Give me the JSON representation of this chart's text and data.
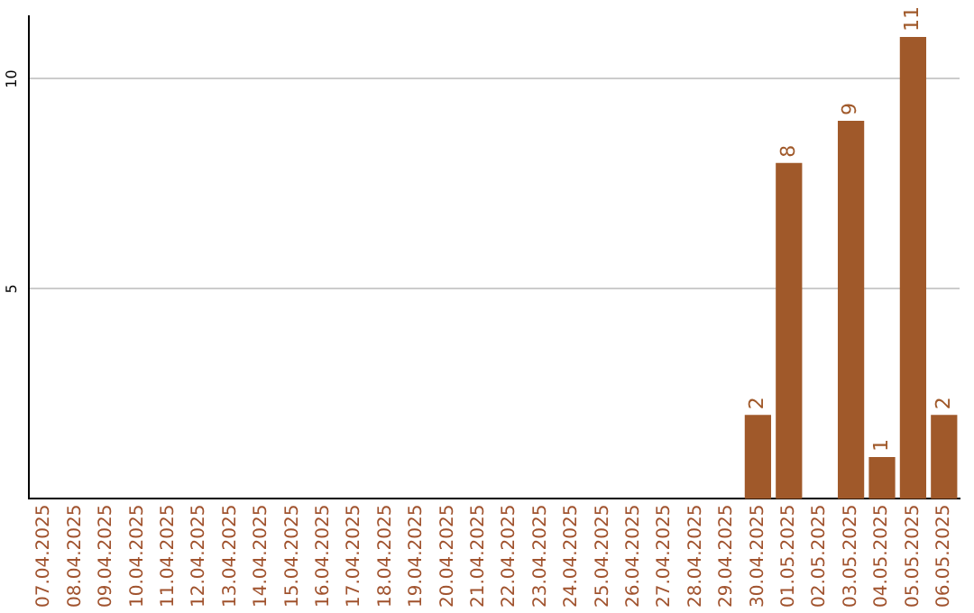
{
  "chart_data": {
    "type": "bar",
    "categories": [
      "07.04.2025",
      "08.04.2025",
      "09.04.2025",
      "10.04.2025",
      "11.04.2025",
      "12.04.2025",
      "13.04.2025",
      "14.04.2025",
      "15.04.2025",
      "16.04.2025",
      "17.04.2025",
      "18.04.2025",
      "19.04.2025",
      "20.04.2025",
      "21.04.2025",
      "22.04.2025",
      "23.04.2025",
      "24.04.2025",
      "25.04.2025",
      "26.04.2025",
      "27.04.2025",
      "28.04.2025",
      "29.04.2025",
      "30.04.2025",
      "01.05.2025",
      "02.05.2025",
      "03.05.2025",
      "04.05.2025",
      "05.05.2025",
      "06.05.2025"
    ],
    "values": [
      0,
      0,
      0,
      0,
      0,
      0,
      0,
      0,
      0,
      0,
      0,
      0,
      0,
      0,
      0,
      0,
      0,
      0,
      0,
      0,
      0,
      0,
      0,
      2,
      8,
      0,
      9,
      1,
      11,
      2
    ],
    "value_labels": [
      null,
      null,
      null,
      null,
      null,
      null,
      null,
      null,
      null,
      null,
      null,
      null,
      null,
      null,
      null,
      null,
      null,
      null,
      null,
      null,
      null,
      null,
      null,
      "2",
      "8",
      null,
      "9",
      "1",
      "11",
      "2"
    ],
    "color": "#a0592a",
    "ylim": [
      0,
      11.5
    ],
    "yticks": [
      5,
      10
    ],
    "grid": "y",
    "legend": false
  }
}
